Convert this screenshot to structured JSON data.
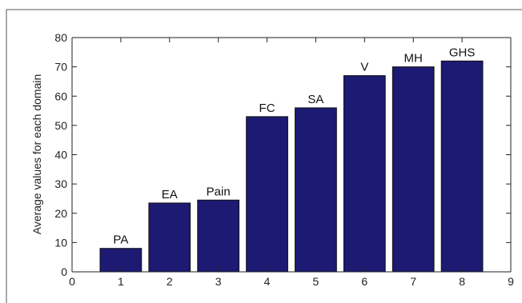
{
  "chart_data": {
    "type": "bar",
    "title": "",
    "xlabel": "",
    "ylabel": "Average values for each domain",
    "x": [
      1,
      2,
      3,
      4,
      5,
      6,
      7,
      8
    ],
    "values": [
      8,
      23.5,
      24.5,
      53,
      56,
      67,
      70,
      72
    ],
    "bar_labels": [
      "PA",
      "EA",
      "Pain",
      "FC",
      "SA",
      "V",
      "MH",
      "GHS"
    ],
    "xlim": [
      0,
      9
    ],
    "ylim": [
      0,
      80
    ],
    "xticks": [
      0,
      1,
      2,
      3,
      4,
      5,
      6,
      7,
      8,
      9
    ],
    "yticks": [
      0,
      10,
      20,
      30,
      40,
      50,
      60,
      70,
      80
    ],
    "grid": false,
    "legend": "none",
    "colors": {
      "bar": "#1c1a72",
      "bar_edge": "#111111",
      "axis": "#222222",
      "frame": "#444444"
    }
  }
}
